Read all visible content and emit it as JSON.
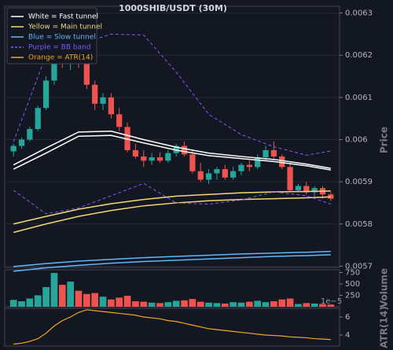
{
  "chart_data": [
    {
      "type": "candlestick",
      "title": "1000SHIB/USDT (30M)",
      "ylabel": "Price",
      "ylim": [
        0.005697,
        0.006316
      ],
      "yticks": [
        0.0057,
        0.0058,
        0.0059,
        0.006,
        0.0061,
        0.0062,
        0.0063
      ],
      "grid": true,
      "up_color": "#26a69a",
      "down_color": "#ef5350",
      "legend": "upper left",
      "open": [
        0.005972,
        0.005985,
        0.006,
        0.006025,
        0.006075,
        0.00614,
        0.006195,
        0.00618,
        0.006215,
        0.006185,
        0.00613,
        0.006085,
        0.0061,
        0.00606,
        0.00603,
        0.005975,
        0.00596,
        0.00595,
        0.005958,
        0.00595,
        0.005968,
        0.005985,
        0.005965,
        0.005925,
        0.005905,
        0.00592,
        0.00593,
        0.00591,
        0.005925,
        0.00594,
        0.005935,
        0.005958,
        0.005975,
        0.00596,
        0.005935,
        0.00588,
        0.00589,
        0.005875,
        0.005885,
        0.00587
      ],
      "high": [
        0.00599,
        0.006005,
        0.00603,
        0.00608,
        0.00615,
        0.00621,
        0.00623,
        0.006225,
        0.00624,
        0.0062,
        0.00614,
        0.00611,
        0.00611,
        0.006075,
        0.00604,
        0.00599,
        0.005975,
        0.005968,
        0.00597,
        0.005975,
        0.00599,
        0.005995,
        0.005975,
        0.005945,
        0.00593,
        0.005935,
        0.00594,
        0.005935,
        0.005945,
        0.00595,
        0.005965,
        0.005985,
        0.005995,
        0.005965,
        0.005945,
        0.005895,
        0.0059,
        0.00589,
        0.00589,
        0.005875
      ],
      "low": [
        0.00596,
        0.005978,
        0.005995,
        0.00602,
        0.00607,
        0.00613,
        0.00617,
        0.006165,
        0.00617,
        0.00612,
        0.00607,
        0.00607,
        0.00605,
        0.00602,
        0.00597,
        0.005955,
        0.005935,
        0.00594,
        0.005945,
        0.005945,
        0.00596,
        0.00596,
        0.00592,
        0.0059,
        0.005895,
        0.005905,
        0.005905,
        0.005905,
        0.005915,
        0.005925,
        0.00593,
        0.00595,
        0.005955,
        0.00593,
        0.005875,
        0.005875,
        0.00587,
        0.005865,
        0.00586,
        0.005855
      ],
      "close": [
        0.005985,
        0.006,
        0.006025,
        0.006075,
        0.00614,
        0.006195,
        0.00618,
        0.006215,
        0.006185,
        0.00613,
        0.006085,
        0.0061,
        0.00606,
        0.00603,
        0.005975,
        0.00596,
        0.00595,
        0.005958,
        0.00595,
        0.005968,
        0.005985,
        0.005965,
        0.005925,
        0.005905,
        0.00592,
        0.00593,
        0.00591,
        0.005925,
        0.00594,
        0.005935,
        0.005958,
        0.005975,
        0.00596,
        0.005935,
        0.00588,
        0.00589,
        0.005875,
        0.005885,
        0.00587,
        0.00586
      ],
      "series": [
        {
          "name": "White = Fast tunnel",
          "color": "#ffffff",
          "dashed": false,
          "x": [
            0,
            4,
            8,
            12,
            16,
            20,
            24,
            28,
            32,
            36,
            39
          ],
          "upper": [
            0.00594,
            0.00598,
            0.006018,
            0.00602,
            0.006,
            0.005982,
            0.005968,
            0.00596,
            0.005953,
            0.005942,
            0.005932
          ],
          "lower": [
            0.00593,
            0.005968,
            0.006008,
            0.00601,
            0.005992,
            0.005975,
            0.005962,
            0.005955,
            0.005948,
            0.005938,
            0.005928
          ]
        },
        {
          "name": "Yellow = Main tunnel",
          "color": "#f7d774",
          "dashed": false,
          "x": [
            0,
            4,
            8,
            12,
            16,
            20,
            24,
            28,
            32,
            36,
            39
          ],
          "upper": [
            0.0058,
            0.005818,
            0.005835,
            0.005848,
            0.005858,
            0.005866,
            0.00587,
            0.005874,
            0.005876,
            0.005877,
            0.005878
          ],
          "lower": [
            0.00578,
            0.0058,
            0.005818,
            0.005832,
            0.005843,
            0.00585,
            0.005855,
            0.005858,
            0.00586,
            0.005862,
            0.005864
          ]
        },
        {
          "name": "Blue = Slow tunnel",
          "color": "#64b5f6",
          "dashed": false,
          "x": [
            0,
            4,
            8,
            12,
            16,
            20,
            24,
            28,
            32,
            36,
            39
          ],
          "upper": [
            0.005699,
            0.005706,
            0.005712,
            0.005716,
            0.00572,
            0.005723,
            0.005726,
            0.005729,
            0.005731,
            0.005733,
            0.005735
          ],
          "lower": [
            0.005688,
            0.005696,
            0.005702,
            0.005707,
            0.005711,
            0.005714,
            0.005717,
            0.00572,
            0.005723,
            0.005725,
            0.005727
          ]
        },
        {
          "name": "Purple = BB band",
          "color": "#7c5cff",
          "dashed": true,
          "x": [
            0,
            4,
            8,
            12,
            16,
            20,
            24,
            28,
            32,
            36,
            39
          ],
          "upper": [
            0.005995,
            0.0062,
            0.006225,
            0.00625,
            0.006248,
            0.00616,
            0.00606,
            0.006012,
            0.005983,
            0.005963,
            0.005973
          ],
          "lower": [
            0.00588,
            0.005824,
            0.005838,
            0.005867,
            0.005896,
            0.00585,
            0.005847,
            0.005857,
            0.005876,
            0.005867,
            0.005847
          ]
        }
      ]
    },
    {
      "type": "bar",
      "ylabel": "Volume",
      "ylim": [
        0,
        810
      ],
      "yticks": [
        250,
        500,
        750
      ],
      "values": [
        150,
        120,
        180,
        250,
        430,
        740,
        480,
        550,
        350,
        280,
        300,
        220,
        160,
        200,
        240,
        120,
        110,
        90,
        80,
        100,
        130,
        140,
        170,
        110,
        90,
        80,
        70,
        100,
        90,
        110,
        130,
        100,
        120,
        160,
        180,
        60,
        80,
        70,
        60,
        50
      ]
    },
    {
      "type": "line",
      "ylabel": "ATR(14)",
      "offset_text": "1e−5",
      "ylim": [
        2.78,
        6.96
      ],
      "yticks": [
        4,
        6
      ],
      "series": [
        {
          "name": "Orange = ATR(14)",
          "color": "#f5a623",
          "values": [
            3.0,
            3.1,
            3.3,
            3.6,
            4.2,
            5.0,
            5.6,
            6.0,
            6.5,
            6.8,
            6.7,
            6.6,
            6.5,
            6.4,
            6.3,
            6.2,
            6.0,
            5.9,
            5.8,
            5.6,
            5.5,
            5.3,
            5.1,
            4.9,
            4.7,
            4.6,
            4.5,
            4.4,
            4.3,
            4.2,
            4.1,
            4.0,
            3.95,
            3.9,
            3.8,
            3.75,
            3.7,
            3.6,
            3.55,
            3.5
          ]
        }
      ]
    }
  ]
}
